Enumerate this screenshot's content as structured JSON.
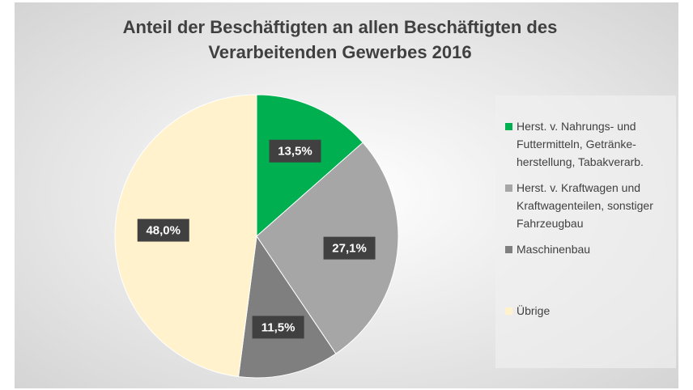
{
  "chart_data": {
    "type": "pie",
    "title": "Anteil der Beschäftigten an allen Beschäftigten des Verarbeitenden Gewerbes 2016",
    "categories": [
      "Herst. v. Nahrungs- und Futtermitteln, Getränke-herstellung, Tabakverarb.",
      "Herst. v. Kraftwagen und Kraftwagenteilen, sonstiger Fahrzeugbau",
      "Maschinenbau",
      "Übrige"
    ],
    "values": [
      13.5,
      27.1,
      11.5,
      48.0
    ],
    "value_labels": [
      "13,5%",
      "27,1%",
      "11,5%",
      "48,0%"
    ],
    "colors": [
      "#00b050",
      "#a6a6a6",
      "#7f7f7f",
      "#fff2cc"
    ],
    "legend": "right"
  }
}
